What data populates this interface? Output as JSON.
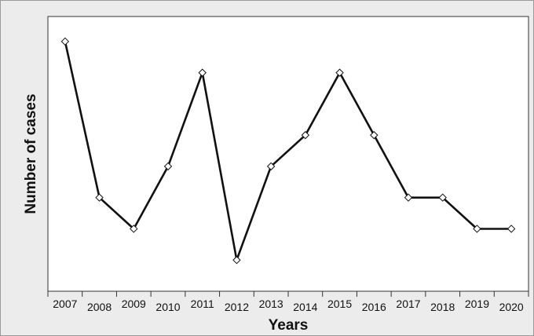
{
  "chart_data": {
    "type": "line",
    "title": "",
    "xlabel": "Years",
    "ylabel": "Number of cases",
    "categories": [
      "2007",
      "2008",
      "2009",
      "2010",
      "2011",
      "2012",
      "2013",
      "2014",
      "2015",
      "2016",
      "2017",
      "2018",
      "2019",
      "2020"
    ],
    "series": [
      {
        "values": [
          10,
          5,
          4,
          6,
          9,
          3,
          6,
          7,
          9,
          7,
          5,
          5,
          4,
          4
        ]
      }
    ],
    "ylim": [
      2,
      10.8
    ],
    "y_ticks_shown": false,
    "grid": false,
    "legend": "none",
    "line_color": "#111111",
    "marker": "diamond-open",
    "plot_background": "#ffffff",
    "figure_background": "#ececec"
  }
}
